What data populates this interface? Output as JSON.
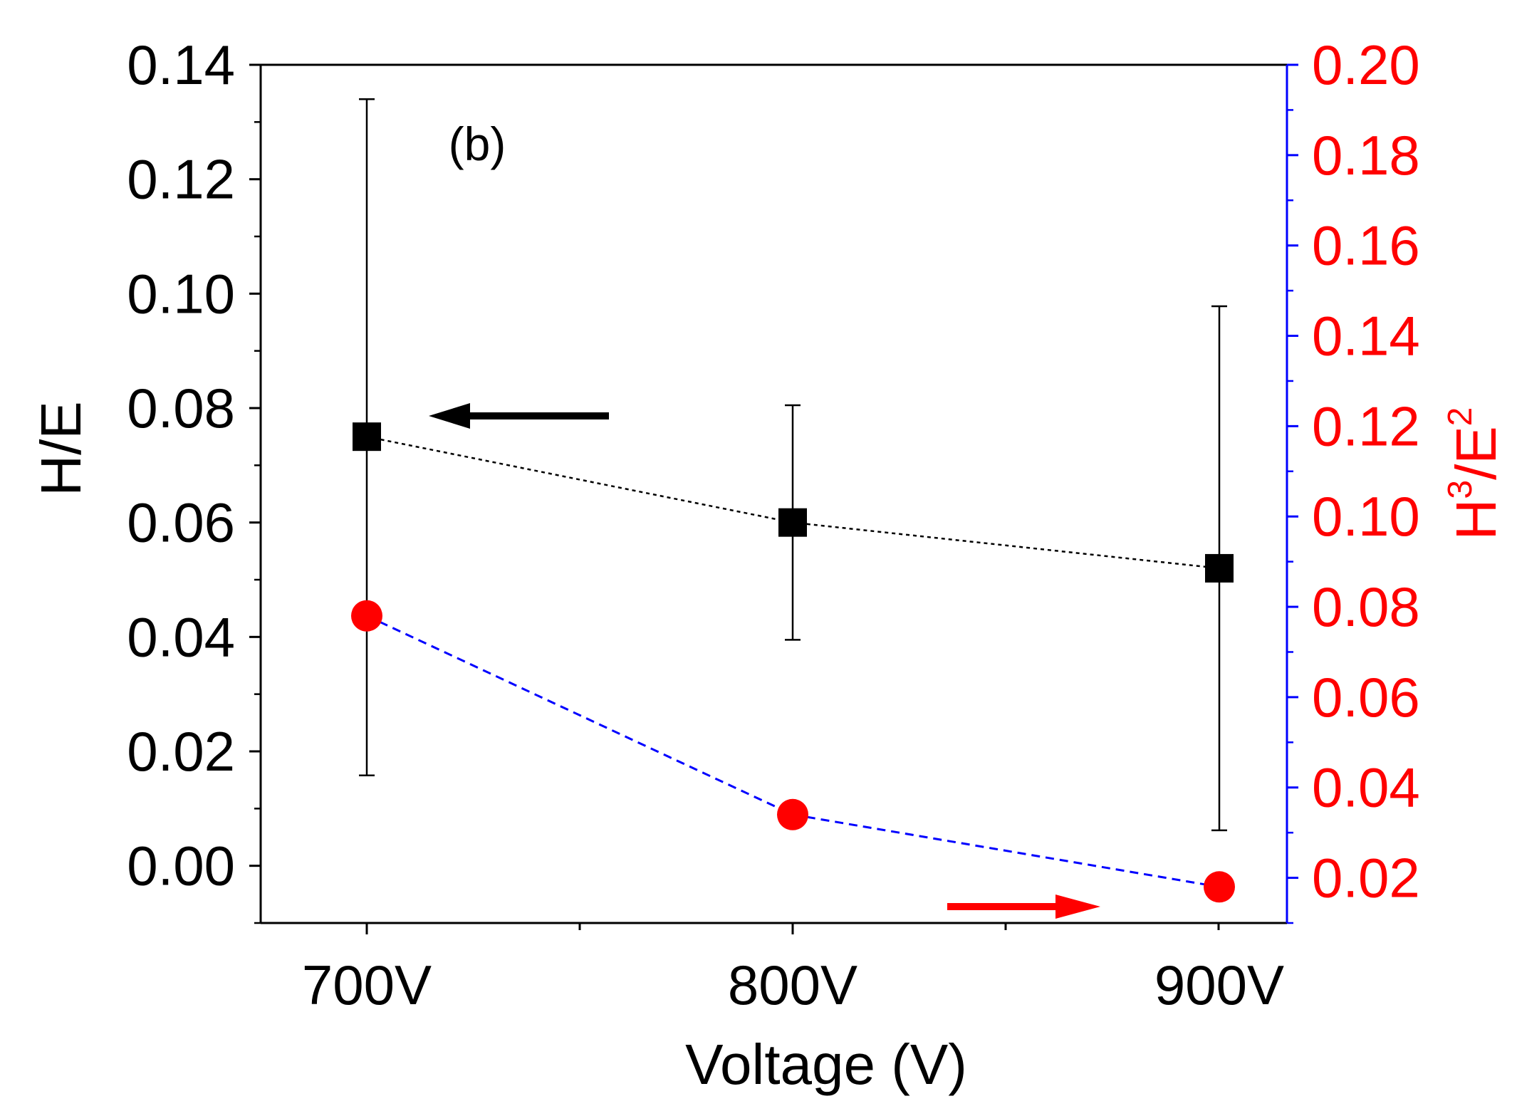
{
  "chart_data": {
    "type": "scatter",
    "panel_label": "(b)",
    "categories": [
      "700V",
      "800V",
      "900V"
    ],
    "xlabel": "Voltage (V)",
    "colors": {
      "left_axis": "#000000",
      "right_axis_text": "#ff0000",
      "right_axis_line": "#0000ff",
      "series_he": "#000000",
      "series_h3e2": "#ff0000",
      "h3e2_line": "#0000ff"
    },
    "left_axis": {
      "label": "H/E",
      "ylim": [
        -0.01,
        0.14
      ],
      "ticks": [
        0.0,
        0.02,
        0.04,
        0.06,
        0.08,
        0.1,
        0.12,
        0.14
      ],
      "tick_labels": [
        "0.00",
        "0.02",
        "0.04",
        "0.06",
        "0.08",
        "0.10",
        "0.12",
        "0.14"
      ]
    },
    "right_axis": {
      "label_base1": "H",
      "label_sup1": "3",
      "label_base2": "/E",
      "label_sup2": "2",
      "ylim": [
        0.01,
        0.2
      ],
      "ticks": [
        0.02,
        0.04,
        0.06,
        0.08,
        0.1,
        0.12,
        0.14,
        0.16,
        0.18,
        0.2
      ],
      "tick_labels": [
        "0.02",
        "0.04",
        "0.06",
        "0.08",
        "0.10",
        "0.12",
        "0.14",
        "0.16",
        "0.18",
        "0.20"
      ]
    },
    "series": [
      {
        "name": "H/E",
        "axis": "left",
        "marker": "square",
        "values": [
          0.075,
          0.06,
          0.052
        ],
        "err_low": [
          0.0158,
          0.0395,
          0.0062
        ],
        "err_high": [
          0.134,
          0.0805,
          0.0978
        ]
      },
      {
        "name": "H3/E2",
        "axis": "right",
        "marker": "circle",
        "values": [
          0.078,
          0.034,
          0.018
        ]
      }
    ],
    "annotations": [
      {
        "type": "arrow",
        "direction": "left",
        "points_to": "left_axis"
      },
      {
        "type": "arrow",
        "direction": "right",
        "points_to": "right_axis"
      }
    ]
  }
}
